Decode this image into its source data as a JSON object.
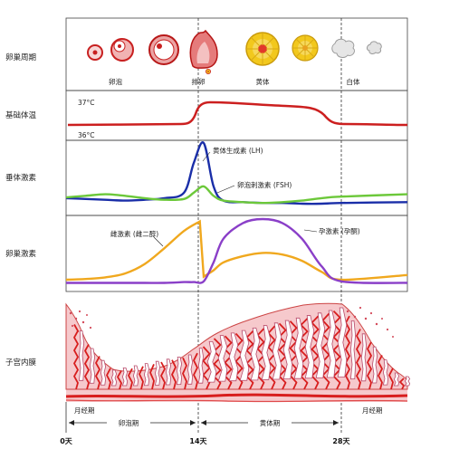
{
  "rows": {
    "ovary_cycle": "卵巢周期",
    "bbt": "基础体温",
    "pituitary": "垂体激素",
    "ovarian_hormones": "卵巢激素",
    "endometrium": "子宫内膜"
  },
  "ovary_stages": {
    "follicle": "卵泡",
    "ovulation": "排卵",
    "corpus_luteum": "黄体",
    "corpus_albicans": "白体"
  },
  "temperature_labels": {
    "high": "37°C",
    "low": "36°C"
  },
  "hormone_labels": {
    "lh": "黄体生成素 (LH)",
    "fsh": "卵泡刺激素 (FSH)",
    "estrogen": "雌激素 (雌二醇)",
    "progesterone": "孕激素 (孕酮)"
  },
  "phases": {
    "menses_start": "月经期",
    "follicular": "卵泡期",
    "luteal": "黄体期",
    "menses_end": "月经期"
  },
  "days": {
    "d0": "0天",
    "d14": "14天",
    "d28": "28天"
  },
  "colors": {
    "temperature": "#cc1f1f",
    "lh": "#1a2ea8",
    "fsh": "#6cc83a",
    "estrogen": "#f0a81e",
    "progesterone": "#8a3fc8",
    "endometrium_fill": "#f6c9cc",
    "endometrium_vessel": "#d81e1e",
    "follicle_yellow": "#f2c81d"
  },
  "chart_data": {
    "type": "line",
    "x_days": [
      0,
      2,
      4,
      6,
      8,
      10,
      12,
      13,
      14,
      15,
      16,
      18,
      20,
      22,
      24,
      26,
      28
    ],
    "series": [
      {
        "name": "黄体生成素 (LH)",
        "values": [
          15,
          14,
          13,
          12,
          13,
          15,
          22,
          60,
          85,
          30,
          12,
          10,
          9,
          9,
          8,
          8,
          9
        ]
      },
      {
        "name": "卵泡刺激素 (FSH)",
        "values": [
          16,
          18,
          20,
          18,
          15,
          13,
          14,
          22,
          30,
          18,
          12,
          10,
          9,
          10,
          12,
          15,
          17
        ]
      },
      {
        "name": "雌激素 (雌二醇)",
        "values": [
          8,
          9,
          11,
          16,
          28,
          48,
          70,
          80,
          15,
          20,
          30,
          38,
          42,
          40,
          32,
          18,
          8
        ]
      },
      {
        "name": "孕激素 (孕酮)",
        "values": [
          4,
          4,
          4,
          4,
          4,
          4,
          5,
          5,
          6,
          30,
          60,
          80,
          85,
          80,
          60,
          25,
          6
        ]
      }
    ]
  }
}
